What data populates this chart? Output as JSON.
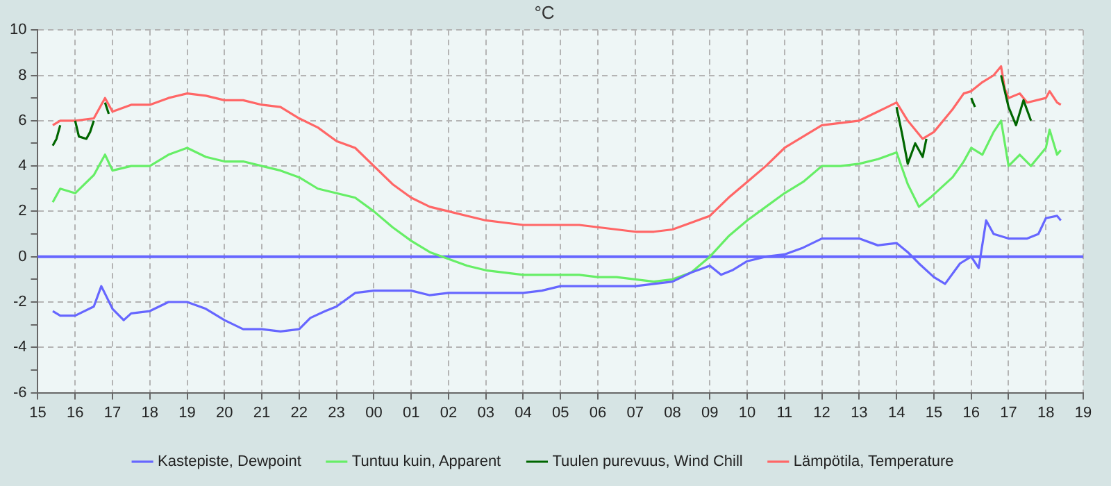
{
  "chart_data": {
    "type": "line",
    "title": "°C",
    "xlim": [
      "2000-01-01T15:00",
      "2000-01-02T19:00"
    ],
    "xticks": [
      {
        "value": "2000-01-01T15:00",
        "label": "15"
      },
      {
        "value": "2000-01-01T16:00",
        "label": "16"
      },
      {
        "value": "2000-01-01T17:00",
        "label": "17"
      },
      {
        "value": "2000-01-01T18:00",
        "label": "18"
      },
      {
        "value": "2000-01-01T19:00",
        "label": "19"
      },
      {
        "value": "2000-01-01T20:00",
        "label": "20"
      },
      {
        "value": "2000-01-01T21:00",
        "label": "21"
      },
      {
        "value": "2000-01-01T22:00",
        "label": "22"
      },
      {
        "value": "2000-01-01T23:00",
        "label": "23"
      },
      {
        "value": "2000-01-02T00:00",
        "label": "00"
      },
      {
        "value": "2000-01-02T01:00",
        "label": "01"
      },
      {
        "value": "2000-01-02T02:00",
        "label": "02"
      },
      {
        "value": "2000-01-02T03:00",
        "label": "03"
      },
      {
        "value": "2000-01-02T04:00",
        "label": "04"
      },
      {
        "value": "2000-01-02T05:00",
        "label": "05"
      },
      {
        "value": "2000-01-02T06:00",
        "label": "06"
      },
      {
        "value": "2000-01-02T07:00",
        "label": "07"
      },
      {
        "value": "2000-01-02T08:00",
        "label": "08"
      },
      {
        "value": "2000-01-02T09:00",
        "label": "09"
      },
      {
        "value": "2000-01-02T10:00",
        "label": "10"
      },
      {
        "value": "2000-01-02T11:00",
        "label": "11"
      },
      {
        "value": "2000-01-02T12:00",
        "label": "12"
      },
      {
        "value": "2000-01-02T13:00",
        "label": "13"
      },
      {
        "value": "2000-01-02T14:00",
        "label": "14"
      },
      {
        "value": "2000-01-02T15:00",
        "label": "15"
      },
      {
        "value": "2000-01-02T16:00",
        "label": "16"
      },
      {
        "value": "2000-01-02T17:00",
        "label": "17"
      },
      {
        "value": "2000-01-02T18:00",
        "label": "18"
      },
      {
        "value": "2000-01-02T19:00",
        "label": "19"
      }
    ],
    "ylim": [
      -6,
      10
    ],
    "yticks": [
      -6,
      {
        "value": -5,
        "label": null
      },
      -4,
      {
        "value": -3,
        "label": null
      },
      -2,
      {
        "value": -1,
        "label": null
      },
      0,
      {
        "value": 1,
        "label": null
      },
      2,
      {
        "value": 3,
        "label": null
      },
      4,
      {
        "value": 5,
        "label": null
      },
      6,
      {
        "value": 7,
        "label": null
      },
      8,
      {
        "value": 9,
        "label": null
      },
      10
    ],
    "grid": true,
    "legend": "bottom",
    "marker": "none",
    "line_style": "solid",
    "ref_lines": [
      {
        "axis": "y",
        "value": 0,
        "color": "#6666ff"
      }
    ],
    "series": [
      {
        "name": "Kastepiste, Dewpoint",
        "color": "#6666ff",
        "x": [
          "2000-01-01T15:24",
          "2000-01-01T15:36",
          "2000-01-01T16:00",
          "2000-01-01T16:30",
          "2000-01-01T16:42",
          "2000-01-01T17:00",
          "2000-01-01T17:18",
          "2000-01-01T17:30",
          "2000-01-01T18:00",
          "2000-01-01T18:30",
          "2000-01-01T19:00",
          "2000-01-01T19:30",
          "2000-01-01T20:00",
          "2000-01-01T20:30",
          "2000-01-01T21:00",
          "2000-01-01T21:30",
          "2000-01-01T22:00",
          "2000-01-01T22:18",
          "2000-01-01T22:42",
          "2000-01-01T23:00",
          "2000-01-01T23:30",
          "2000-01-02T00:00",
          "2000-01-02T00:30",
          "2000-01-02T01:00",
          "2000-01-02T01:30",
          "2000-01-02T02:00",
          "2000-01-02T02:30",
          "2000-01-02T03:00",
          "2000-01-02T03:30",
          "2000-01-02T04:00",
          "2000-01-02T04:30",
          "2000-01-02T05:00",
          "2000-01-02T05:30",
          "2000-01-02T06:00",
          "2000-01-02T06:30",
          "2000-01-02T07:00",
          "2000-01-02T07:30",
          "2000-01-02T08:00",
          "2000-01-02T08:30",
          "2000-01-02T09:00",
          "2000-01-02T09:18",
          "2000-01-02T09:36",
          "2000-01-02T10:00",
          "2000-01-02T10:30",
          "2000-01-02T11:00",
          "2000-01-02T11:30",
          "2000-01-02T12:00",
          "2000-01-02T12:30",
          "2000-01-02T13:00",
          "2000-01-02T13:30",
          "2000-01-02T14:00",
          "2000-01-02T14:18",
          "2000-01-02T14:36",
          "2000-01-02T15:00",
          "2000-01-02T15:18",
          "2000-01-02T15:42",
          "2000-01-02T16:00",
          "2000-01-02T16:12",
          "2000-01-02T16:24",
          "2000-01-02T16:36",
          "2000-01-02T17:00",
          "2000-01-02T17:30",
          "2000-01-02T17:48",
          "2000-01-02T18:00",
          "2000-01-02T18:18",
          "2000-01-02T18:24"
        ],
        "values": [
          -2.4,
          -2.6,
          -2.6,
          -2.2,
          -1.3,
          -2.3,
          -2.8,
          -2.5,
          -2.4,
          -2.0,
          -2.0,
          -2.3,
          -2.8,
          -3.2,
          -3.2,
          -3.3,
          -3.2,
          -2.7,
          -2.4,
          -2.2,
          -1.6,
          -1.5,
          -1.5,
          -1.5,
          -1.7,
          -1.6,
          -1.6,
          -1.6,
          -1.6,
          -1.6,
          -1.5,
          -1.3,
          -1.3,
          -1.3,
          -1.3,
          -1.3,
          -1.2,
          -1.1,
          -0.7,
          -0.4,
          -0.8,
          -0.6,
          -0.2,
          0.0,
          0.1,
          0.4,
          0.8,
          0.8,
          0.8,
          0.5,
          0.6,
          0.2,
          -0.3,
          -0.9,
          -1.2,
          -0.3,
          0.0,
          -0.5,
          1.6,
          1.0,
          0.8,
          0.8,
          1.0,
          1.7,
          1.8,
          1.6
        ]
      },
      {
        "name": "Tuntuu kuin, Apparent",
        "color": "#66ee66",
        "x": [
          "2000-01-01T15:24",
          "2000-01-01T15:36",
          "2000-01-01T16:00",
          "2000-01-01T16:30",
          "2000-01-01T16:48",
          "2000-01-01T17:00",
          "2000-01-01T17:30",
          "2000-01-01T18:00",
          "2000-01-01T18:30",
          "2000-01-01T19:00",
          "2000-01-01T19:30",
          "2000-01-01T20:00",
          "2000-01-01T20:30",
          "2000-01-01T21:00",
          "2000-01-01T21:30",
          "2000-01-01T22:00",
          "2000-01-01T22:30",
          "2000-01-01T23:00",
          "2000-01-01T23:30",
          "2000-01-02T00:00",
          "2000-01-02T00:30",
          "2000-01-02T01:00",
          "2000-01-02T01:30",
          "2000-01-02T02:00",
          "2000-01-02T02:30",
          "2000-01-02T03:00",
          "2000-01-02T03:30",
          "2000-01-02T04:00",
          "2000-01-02T04:30",
          "2000-01-02T05:00",
          "2000-01-02T05:30",
          "2000-01-02T06:00",
          "2000-01-02T06:30",
          "2000-01-02T07:00",
          "2000-01-02T07:30",
          "2000-01-02T08:00",
          "2000-01-02T08:30",
          "2000-01-02T09:00",
          "2000-01-02T09:30",
          "2000-01-02T10:00",
          "2000-01-02T10:30",
          "2000-01-02T11:00",
          "2000-01-02T11:30",
          "2000-01-02T12:00",
          "2000-01-02T12:30",
          "2000-01-02T13:00",
          "2000-01-02T13:30",
          "2000-01-02T14:00",
          "2000-01-02T14:18",
          "2000-01-02T14:36",
          "2000-01-02T14:54",
          "2000-01-02T15:30",
          "2000-01-02T15:48",
          "2000-01-02T16:00",
          "2000-01-02T16:18",
          "2000-01-02T16:36",
          "2000-01-02T16:48",
          "2000-01-02T17:00",
          "2000-01-02T17:18",
          "2000-01-02T17:36",
          "2000-01-02T18:00",
          "2000-01-02T18:06",
          "2000-01-02T18:18",
          "2000-01-02T18:24"
        ],
        "values": [
          2.4,
          3.0,
          2.8,
          3.6,
          4.5,
          3.8,
          4.0,
          4.0,
          4.5,
          4.8,
          4.4,
          4.2,
          4.2,
          4.0,
          3.8,
          3.5,
          3.0,
          2.8,
          2.6,
          2.0,
          1.3,
          0.7,
          0.2,
          -0.1,
          -0.4,
          -0.6,
          -0.7,
          -0.8,
          -0.8,
          -0.8,
          -0.8,
          -0.9,
          -0.9,
          -1.0,
          -1.1,
          -1.0,
          -0.7,
          0.0,
          0.9,
          1.6,
          2.2,
          2.8,
          3.3,
          4.0,
          4.0,
          4.1,
          4.3,
          4.6,
          3.2,
          2.2,
          2.6,
          3.5,
          4.2,
          4.8,
          4.5,
          5.5,
          6.0,
          4.0,
          4.5,
          4.0,
          4.8,
          5.6,
          4.5,
          4.7
        ]
      },
      {
        "name": "Tuulen purevuus, Wind Chill",
        "color": "#006600",
        "x": [
          "2000-01-01T15:24",
          "2000-01-01T15:30",
          "2000-01-01T15:36",
          "2000-01-01T15:48",
          "2000-01-01T16:00",
          "2000-01-01T16:06",
          "2000-01-01T16:18",
          "2000-01-01T16:24",
          "2000-01-01T16:30",
          "2000-01-01T16:39",
          "2000-01-01T16:48",
          "2000-01-01T16:54",
          "2000-01-01T17:30",
          "2000-01-02T14:00",
          "2000-01-02T14:09",
          "2000-01-02T14:18",
          "2000-01-02T14:30",
          "2000-01-02T14:42",
          "2000-01-02T14:48",
          "2000-01-02T15:24",
          "2000-01-02T16:00",
          "2000-01-02T16:06",
          "2000-01-02T16:30",
          "2000-01-02T16:48",
          "2000-01-02T17:00",
          "2000-01-02T17:12",
          "2000-01-02T17:24",
          "2000-01-02T17:36"
        ],
        "values": [
          4.9,
          5.2,
          5.8,
          null,
          6.0,
          5.3,
          5.2,
          5.5,
          6.0,
          null,
          6.8,
          6.3,
          null,
          6.6,
          5.4,
          4.1,
          5.0,
          4.4,
          5.2,
          null,
          7.0,
          6.6,
          null,
          8.0,
          6.6,
          5.8,
          6.9,
          6.0
        ]
      },
      {
        "name": "Lämpötila, Temperature",
        "color": "#ff6666",
        "x": [
          "2000-01-01T15:24",
          "2000-01-01T15:36",
          "2000-01-01T16:00",
          "2000-01-01T16:30",
          "2000-01-01T16:48",
          "2000-01-01T17:00",
          "2000-01-01T17:30",
          "2000-01-01T18:00",
          "2000-01-01T18:30",
          "2000-01-01T19:00",
          "2000-01-01T19:30",
          "2000-01-01T20:00",
          "2000-01-01T20:30",
          "2000-01-01T21:00",
          "2000-01-01T21:30",
          "2000-01-01T22:00",
          "2000-01-01T22:30",
          "2000-01-01T23:00",
          "2000-01-01T23:30",
          "2000-01-02T00:00",
          "2000-01-02T00:30",
          "2000-01-02T01:00",
          "2000-01-02T01:30",
          "2000-01-02T02:00",
          "2000-01-02T02:30",
          "2000-01-02T03:00",
          "2000-01-02T03:30",
          "2000-01-02T04:00",
          "2000-01-02T04:30",
          "2000-01-02T05:00",
          "2000-01-02T05:30",
          "2000-01-02T06:00",
          "2000-01-02T06:30",
          "2000-01-02T07:00",
          "2000-01-02T07:30",
          "2000-01-02T08:00",
          "2000-01-02T08:30",
          "2000-01-02T09:00",
          "2000-01-02T09:30",
          "2000-01-02T10:00",
          "2000-01-02T10:30",
          "2000-01-02T11:00",
          "2000-01-02T11:30",
          "2000-01-02T12:00",
          "2000-01-02T12:30",
          "2000-01-02T13:00",
          "2000-01-02T13:30",
          "2000-01-02T14:00",
          "2000-01-02T14:18",
          "2000-01-02T14:42",
          "2000-01-02T15:00",
          "2000-01-02T15:30",
          "2000-01-02T15:48",
          "2000-01-02T16:00",
          "2000-01-02T16:18",
          "2000-01-02T16:36",
          "2000-01-02T16:48",
          "2000-01-02T16:54",
          "2000-01-02T17:00",
          "2000-01-02T17:18",
          "2000-01-02T17:30",
          "2000-01-02T18:00",
          "2000-01-02T18:06",
          "2000-01-02T18:18",
          "2000-01-02T18:24"
        ],
        "values": [
          5.8,
          6.0,
          6.0,
          6.1,
          7.0,
          6.4,
          6.7,
          6.7,
          7.0,
          7.2,
          7.1,
          6.9,
          6.9,
          6.7,
          6.6,
          6.1,
          5.7,
          5.1,
          4.8,
          4.0,
          3.2,
          2.6,
          2.2,
          2.0,
          1.8,
          1.6,
          1.5,
          1.4,
          1.4,
          1.4,
          1.4,
          1.3,
          1.2,
          1.1,
          1.1,
          1.2,
          1.5,
          1.8,
          2.6,
          3.3,
          4.0,
          4.8,
          5.3,
          5.8,
          5.9,
          6.0,
          6.4,
          6.8,
          6.0,
          5.2,
          5.5,
          6.5,
          7.2,
          7.3,
          7.7,
          8.0,
          8.4,
          7.4,
          7.0,
          7.2,
          6.8,
          7.0,
          7.3,
          6.8,
          6.7
        ]
      }
    ]
  }
}
